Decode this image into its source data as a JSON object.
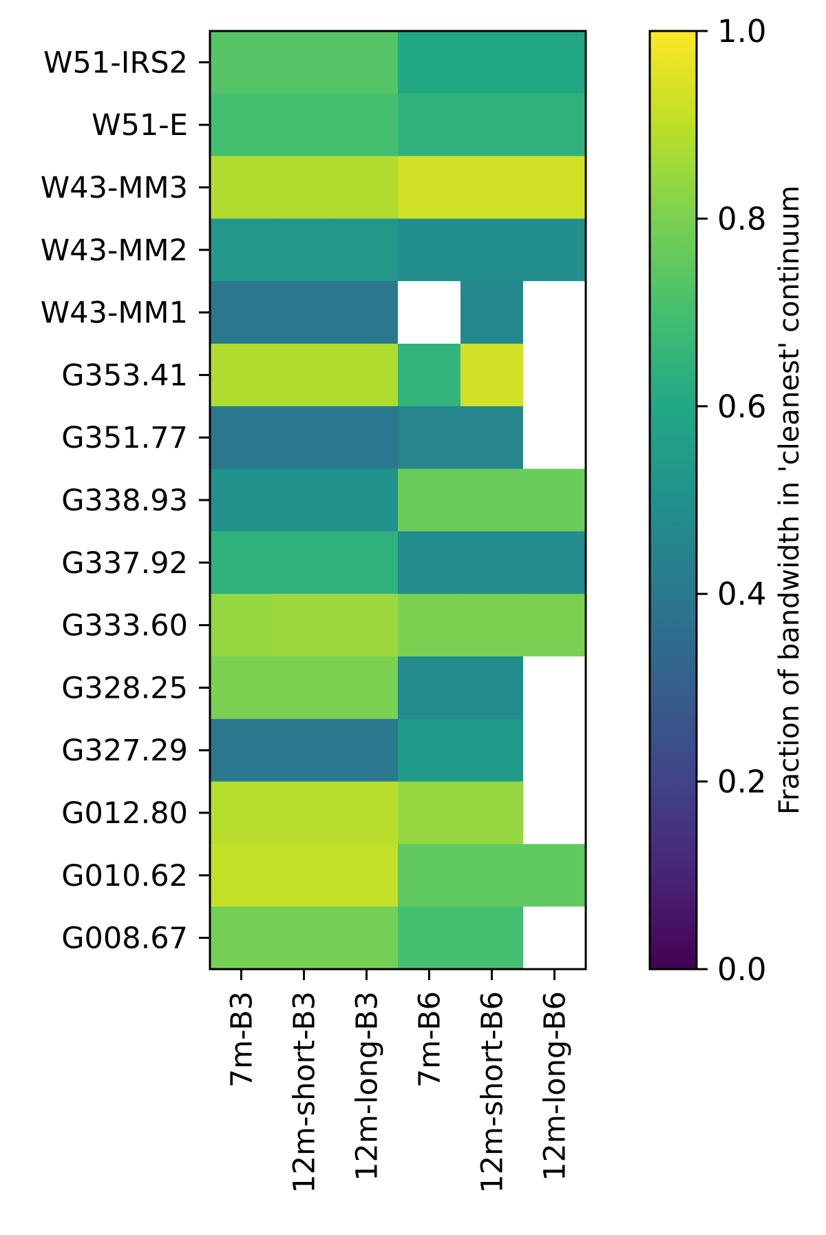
{
  "chart_data": {
    "type": "heatmap",
    "title": "",
    "xlabel": "",
    "ylabel": "",
    "rows": [
      "W51-IRS2",
      "W51-E",
      "W43-MM3",
      "W43-MM2",
      "W43-MM1",
      "G353.41",
      "G351.77",
      "G338.93",
      "G337.92",
      "G333.60",
      "G328.25",
      "G327.29",
      "G012.80",
      "G010.62",
      "G008.67"
    ],
    "columns": [
      "7m-B3",
      "12m-short-B3",
      "12m-long-B3",
      "7m-B6",
      "12m-short-B6",
      "12m-long-B6"
    ],
    "values": [
      [
        0.73,
        0.73,
        0.73,
        0.6,
        0.6,
        0.6
      ],
      [
        0.7,
        0.7,
        0.7,
        0.64,
        0.64,
        0.64
      ],
      [
        0.88,
        0.88,
        0.88,
        0.93,
        0.93,
        0.93
      ],
      [
        0.53,
        0.53,
        0.53,
        0.49,
        0.49,
        0.49
      ],
      [
        0.4,
        0.4,
        0.4,
        null,
        0.47,
        null
      ],
      [
        0.88,
        0.88,
        0.88,
        0.65,
        0.93,
        null
      ],
      [
        0.4,
        0.4,
        0.4,
        0.45,
        0.45,
        null
      ],
      [
        0.5,
        0.5,
        0.5,
        0.77,
        0.77,
        0.77
      ],
      [
        0.64,
        0.64,
        0.64,
        0.48,
        0.48,
        0.48
      ],
      [
        0.84,
        0.85,
        0.85,
        0.8,
        0.8,
        0.8
      ],
      [
        0.8,
        0.8,
        0.8,
        0.48,
        0.48,
        null
      ],
      [
        0.4,
        0.4,
        0.4,
        0.54,
        0.54,
        null
      ],
      [
        0.89,
        0.89,
        0.89,
        0.84,
        0.84,
        null
      ],
      [
        0.91,
        0.91,
        0.91,
        0.75,
        0.75,
        0.75
      ],
      [
        0.79,
        0.79,
        0.79,
        0.7,
        0.7,
        null
      ]
    ],
    "colormap": "viridis",
    "vmin": 0.0,
    "vmax": 1.0,
    "colorbar": {
      "label": "Fraction of bandwidth in 'cleanest' continuum",
      "ticks": [
        0.0,
        0.2,
        0.4,
        0.6,
        0.8,
        1.0
      ],
      "tick_labels": [
        "0.0",
        "0.2",
        "0.4",
        "0.6",
        "0.8",
        "1.0"
      ]
    },
    "missing_color": "#ffffff",
    "grid": false
  }
}
